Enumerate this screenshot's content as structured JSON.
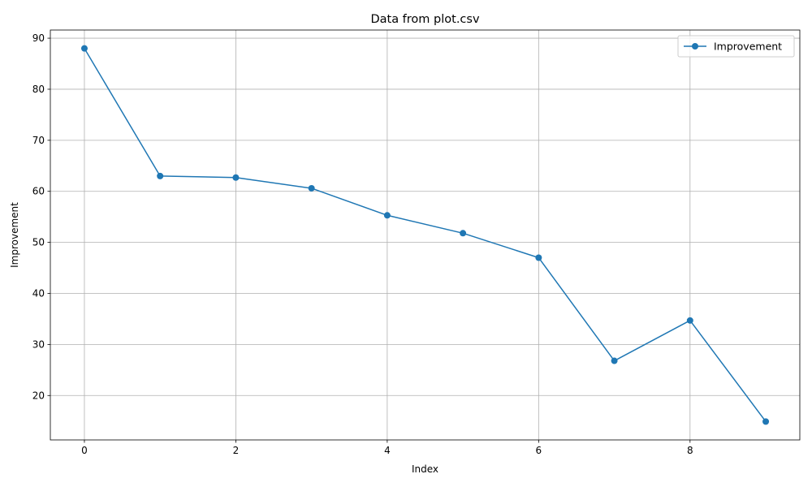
{
  "chart_data": {
    "type": "line",
    "title": "Data from plot.csv",
    "xlabel": "Index",
    "ylabel": "Improvement",
    "x": [
      0,
      1,
      2,
      3,
      4,
      5,
      6,
      7,
      8,
      9
    ],
    "series": [
      {
        "name": "Improvement",
        "values": [
          88.0,
          63.0,
          62.7,
          60.6,
          55.3,
          51.8,
          47.0,
          26.8,
          34.7,
          14.9
        ],
        "color": "#1f77b4",
        "marker": "circle"
      }
    ],
    "xlim": [
      -0.45,
      9.45
    ],
    "ylim": [
      11.3,
      91.6
    ],
    "xticks": [
      0,
      2,
      4,
      6,
      8
    ],
    "yticks": [
      20,
      30,
      40,
      50,
      60,
      70,
      80,
      90
    ],
    "grid": true,
    "legend_position": "top-right"
  }
}
